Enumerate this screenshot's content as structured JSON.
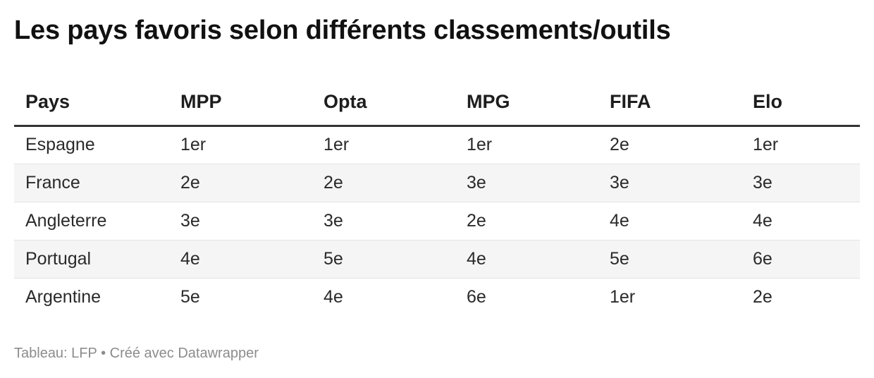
{
  "title": "Les pays favoris selon différents classements/outils",
  "footer": {
    "source_label": "Tableau: LFP",
    "separator": "•",
    "credit": "Créé avec Datawrapper"
  },
  "chart_data": {
    "type": "table",
    "title": "Les pays favoris selon différents classements/outils",
    "columns": [
      "Pays",
      "MPP",
      "Opta",
      "MPG",
      "FIFA",
      "Elo"
    ],
    "rows": [
      [
        "Espagne",
        "1er",
        "1er",
        "1er",
        "2e",
        "1er"
      ],
      [
        "France",
        "2e",
        "2e",
        "3e",
        "3e",
        "3e"
      ],
      [
        "Angleterre",
        "3e",
        "3e",
        "2e",
        "4e",
        "4e"
      ],
      [
        "Portugal",
        "4e",
        "5e",
        "4e",
        "5e",
        "6e"
      ],
      [
        "Argentine",
        "5e",
        "4e",
        "6e",
        "1er",
        "2e"
      ]
    ]
  }
}
